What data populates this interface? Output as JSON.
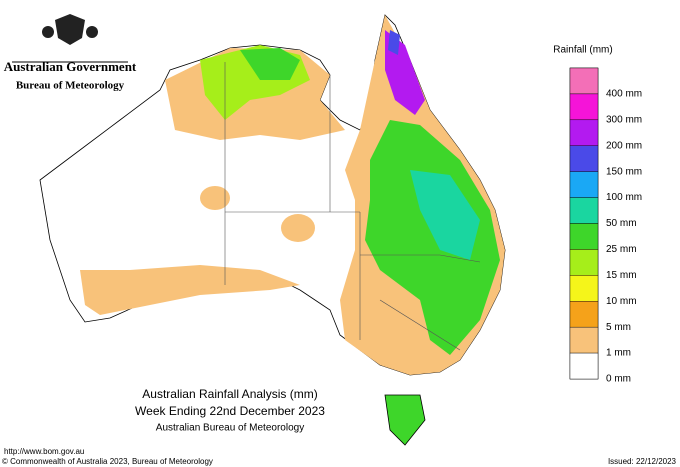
{
  "header": {
    "government": "Australian Government",
    "agency": "Bureau of Meteorology"
  },
  "title": {
    "lines": [
      "Australian Rainfall Analysis (mm)",
      "Week Ending 22nd December 2023",
      "Australian Bureau of Meteorology"
    ]
  },
  "legend": {
    "title": "Rainfall (mm)",
    "colors": [
      "#f36fb7",
      "#f514d8",
      "#b31af0",
      "#4a4ae8",
      "#1aa8f5",
      "#1ad6a0",
      "#3ed62a",
      "#a6ee1a",
      "#f5f51a",
      "#f5a21a",
      "#f8c27a",
      "#ffffff"
    ],
    "labels": [
      "400 mm",
      "300 mm",
      "200 mm",
      "150 mm",
      "100 mm",
      "50 mm",
      "25 mm",
      "15 mm",
      "10 mm",
      "5 mm",
      "1 mm",
      "0 mm"
    ]
  },
  "footer": {
    "url": "http://www.bom.gov.au",
    "copyright": "© Commonwealth of Australia 2023, Bureau of Meteorology",
    "issued": "Issued: 22/12/2023"
  }
}
